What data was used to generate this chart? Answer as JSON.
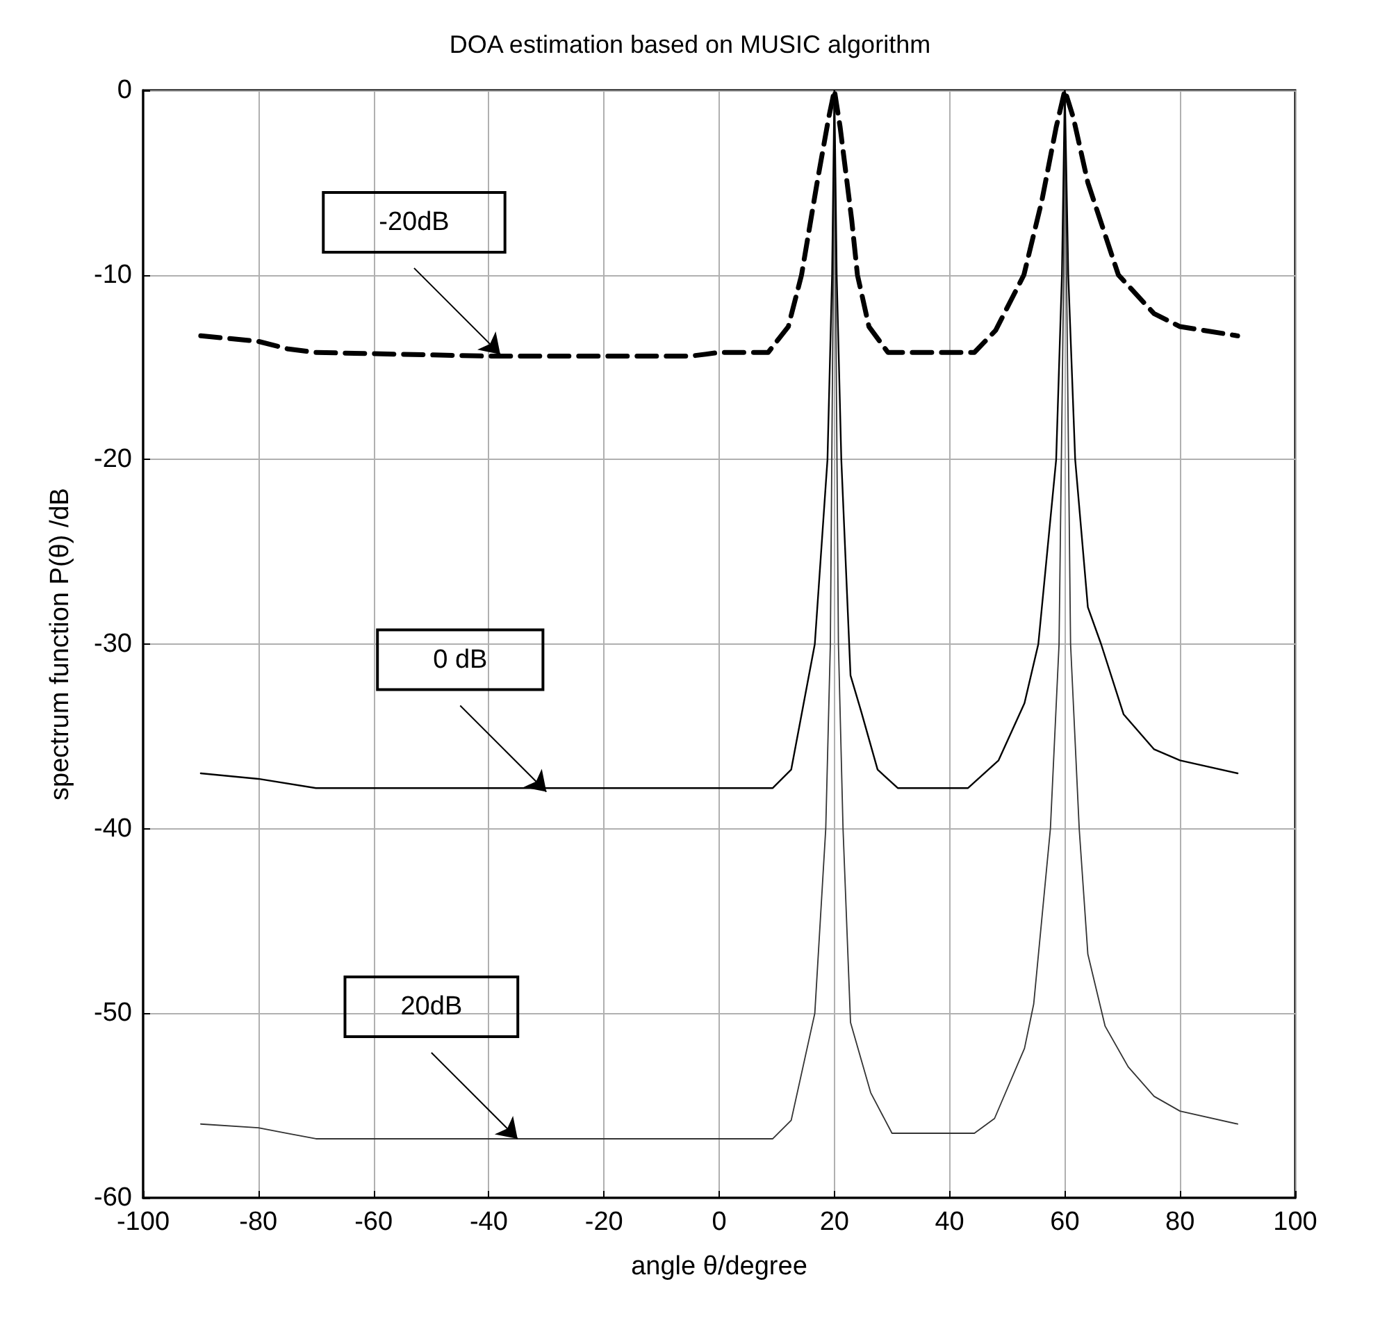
{
  "chart_data": {
    "type": "line",
    "title": "DOA estimation based on MUSIC algorithm",
    "xlabel": "angle θ/degree",
    "ylabel": "spectrum function P(θ) /dB",
    "xlim": [
      -100,
      100
    ],
    "xticks": [
      -100,
      -80,
      -60,
      -40,
      -20,
      0,
      20,
      40,
      60,
      80,
      100
    ],
    "ylim": [
      -60,
      0
    ],
    "yticks": [
      -60,
      -50,
      -40,
      -30,
      -20,
      -10,
      0
    ],
    "grid": true,
    "marker": "none",
    "series": [
      {
        "color": "#000000",
        "line_style": "dashed",
        "x": [
          -90,
          -80,
          -75,
          -70,
          -40,
          -20,
          -5,
          0,
          8.5,
          12,
          14.3,
          17,
          19,
          20,
          21,
          23,
          24,
          26,
          29.3,
          44.3,
          48,
          52.9,
          56,
          58.5,
          60,
          61.5,
          64,
          69.3,
          75.5,
          80,
          90
        ],
        "values": [
          -13.3,
          -13.6,
          -14,
          -14.2,
          -14.4,
          -14.4,
          -14.4,
          -14.2,
          -14.2,
          -12.8,
          -10,
          -5,
          -1.5,
          0,
          -2,
          -7,
          -10,
          -12.8,
          -14.2,
          -14.2,
          -13,
          -10,
          -6,
          -2,
          0,
          -1.5,
          -5,
          -10,
          -12.1,
          -12.8,
          -13.3
        ]
      },
      {
        "color": "#000000",
        "line_style": "solid",
        "x": [
          -90,
          -80,
          -70,
          -30,
          0,
          9.3,
          12.5,
          16.6,
          18.8,
          19.6,
          20,
          20.4,
          21.2,
          22.8,
          24.7,
          27.5,
          31,
          43.2,
          48.5,
          53,
          55.4,
          58.5,
          59.5,
          60,
          60.6,
          61.8,
          64,
          66.3,
          70.2,
          75.5,
          80,
          90
        ],
        "values": [
          -37,
          -37.3,
          -37.8,
          -37.8,
          -37.8,
          -37.8,
          -36.8,
          -30,
          -20,
          -10,
          0,
          -10,
          -20,
          -31.7,
          -33.7,
          -36.8,
          -37.8,
          -37.8,
          -36.3,
          -33.2,
          -30,
          -20,
          -10,
          0,
          -10,
          -20,
          -28,
          -30,
          -33.8,
          -35.7,
          -36.3,
          -37
        ]
      },
      {
        "color": "#333333",
        "line_style": "solid",
        "x": [
          -90,
          -80,
          -75,
          -70,
          -35,
          0,
          9.3,
          12.5,
          16.6,
          18.5,
          19.3,
          19.8,
          20,
          20.2,
          20.7,
          21.5,
          22.8,
          26.3,
          30,
          44.3,
          47.8,
          53,
          54.6,
          57.5,
          59,
          59.8,
          60,
          60.3,
          61,
          62.5,
          64,
          67,
          71,
          75.5,
          80,
          90
        ],
        "values": [
          -56,
          -56.2,
          -56.5,
          -56.8,
          -56.8,
          -56.8,
          -56.8,
          -55.8,
          -50,
          -40,
          -30,
          -10,
          0,
          -10,
          -30,
          -40,
          -50.5,
          -54.3,
          -56.5,
          -56.5,
          -55.7,
          -51.9,
          -49.5,
          -40,
          -30,
          -10,
          0,
          -10,
          -30,
          -40,
          -46.8,
          -50.7,
          -52.9,
          -54.5,
          -55.3,
          -56
        ]
      }
    ],
    "annotations": [
      {
        "text": "-20dB",
        "x": -38,
        "y": -14.3
      },
      {
        "text": "0 dB",
        "x": -30,
        "y": -38
      },
      {
        "text": "20dB",
        "x": -35,
        "y": -56.8
      }
    ]
  }
}
